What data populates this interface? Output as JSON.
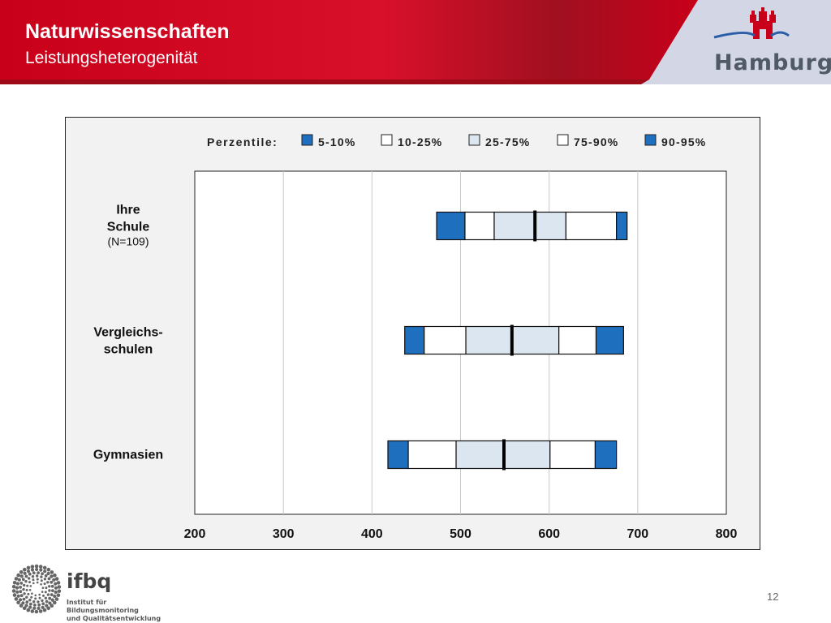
{
  "header": {
    "title": "Naturwissenschaften",
    "subtitle": "Leistungsheterogenität",
    "brand": "Hamburg",
    "colors": {
      "banner": "#d0021b",
      "banner_dark": "#a0101a",
      "panel": "#d3d7e5"
    }
  },
  "footer": {
    "logo_name": "ifbq",
    "logo_subtitle_1": "Institut für Bildungsmonitoring",
    "logo_subtitle_2": "und Qualitätsentwicklung",
    "page_number": "12"
  },
  "chart_data": {
    "type": "bar",
    "legend_title": "Perzentile:",
    "legend": [
      {
        "label": "5-10%",
        "color": "#1f6fbf"
      },
      {
        "label": "10-25%",
        "color": "#ffffff"
      },
      {
        "label": "25-75%",
        "color": "#dce6f0"
      },
      {
        "label": "75-90%",
        "color": "#ffffff"
      },
      {
        "label": "90-95%",
        "color": "#1f6fbf"
      }
    ],
    "categories": [
      {
        "label_lines": [
          "Ihre",
          "Schule"
        ],
        "note": "(N=109)"
      },
      {
        "label_lines": [
          "Vergleichs-",
          "schulen"
        ],
        "note": ""
      },
      {
        "label_lines": [
          "Gymnasien"
        ],
        "note": ""
      }
    ],
    "series": [
      {
        "p5": 473,
        "p10": 505,
        "p25": 538,
        "p50": 584,
        "p75": 619,
        "p90": 676,
        "p95": 688
      },
      {
        "p5": 437,
        "p10": 459,
        "p25": 506,
        "p50": 558,
        "p75": 611,
        "p90": 653,
        "p95": 684
      },
      {
        "p5": 418,
        "p10": 441,
        "p25": 495,
        "p50": 549,
        "p75": 601,
        "p90": 652,
        "p95": 676
      }
    ],
    "x_ticks": [
      "200",
      "300",
      "400",
      "500",
      "600",
      "700",
      "800"
    ],
    "xlim": [
      200,
      800
    ],
    "grid": true,
    "legend_position": "top"
  }
}
